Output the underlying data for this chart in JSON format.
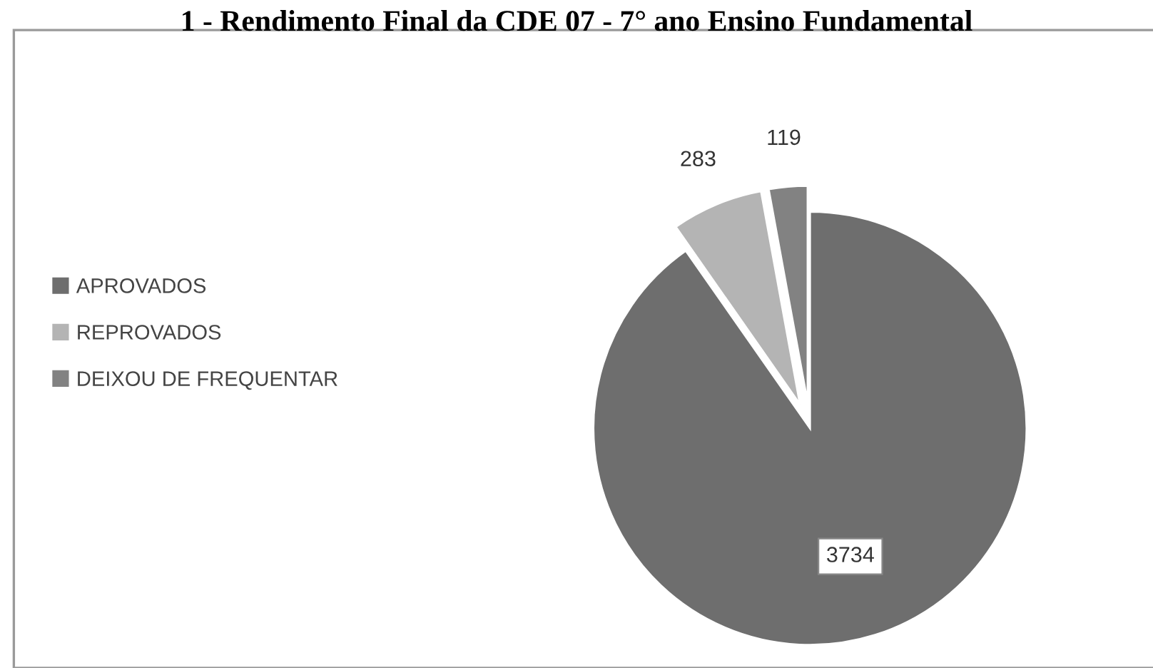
{
  "chart_data": {
    "type": "pie",
    "title": "1 - Rendimento Final da CDE 07 - 7° ano Ensino Fundamental",
    "categories": [
      "APROVADOS",
      "REPROVADOS",
      "DEIXOU DE FREQUENTAR"
    ],
    "values": [
      3734,
      283,
      119
    ],
    "colors": [
      "#6e6e6e",
      "#b4b4b4",
      "#828282"
    ],
    "data_labels": true,
    "legend": "left"
  }
}
